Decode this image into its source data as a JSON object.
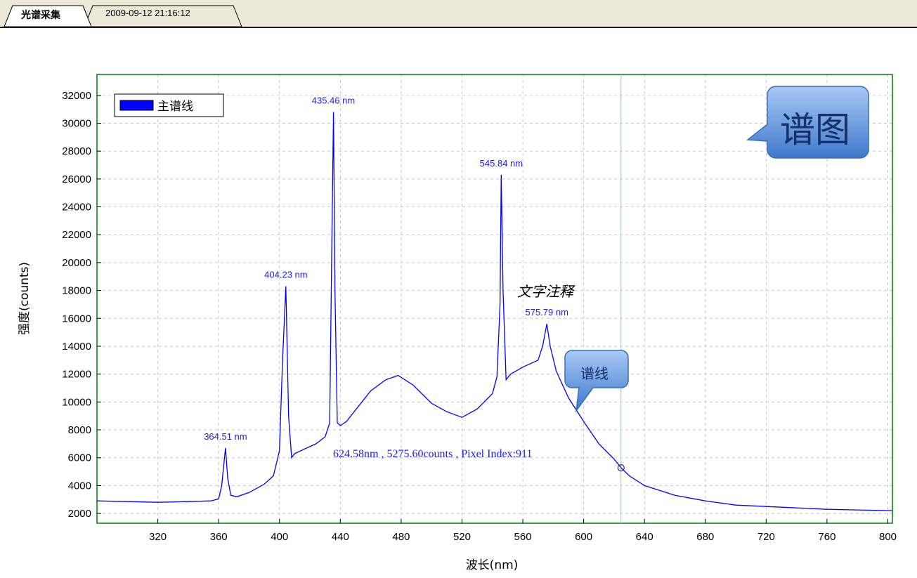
{
  "tabs": [
    {
      "label": "光谱采集",
      "active": true
    },
    {
      "label": "2009-09-12 21:16:12",
      "active": false
    }
  ],
  "colors": {
    "series": "#0000ff",
    "plot_border": "#008000",
    "crosshair": "#8ecbe0",
    "grid": "#c8c8c8",
    "callout": "#5b8fd6"
  },
  "chart_data": {
    "type": "line",
    "xlabel": "波长(nm)",
    "ylabel": "强度(counts)",
    "xlim": [
      280,
      803
    ],
    "ylim": [
      1300,
      33500
    ],
    "xticks": [
      320,
      360,
      400,
      440,
      480,
      520,
      560,
      600,
      640,
      680,
      720,
      760,
      800
    ],
    "yticks": [
      2000,
      4000,
      6000,
      8000,
      10000,
      12000,
      14000,
      16000,
      18000,
      20000,
      22000,
      24000,
      26000,
      28000,
      30000,
      32000
    ],
    "grid": true,
    "legend": {
      "position": "top-left",
      "entries": [
        "主谱线"
      ]
    },
    "series": [
      {
        "name": "主谱线",
        "x": [
          280,
          300,
          320,
          340,
          355,
          360,
          362,
          364.5,
          366,
          368,
          372,
          380,
          390,
          396,
          400,
          402,
          404.2,
          406,
          408,
          410,
          416,
          424,
          430,
          433,
          434.5,
          435.5,
          436.5,
          438,
          440,
          444,
          452,
          460,
          470,
          478,
          488,
          500,
          510,
          520,
          530,
          540,
          543,
          545,
          545.8,
          547,
          549,
          552,
          560,
          566,
          570,
          573,
          575.8,
          578,
          582,
          590,
          600,
          610,
          620,
          624.6,
          630,
          640,
          660,
          680,
          700,
          720,
          740,
          760,
          780,
          803
        ],
        "y": [
          2900,
          2850,
          2800,
          2850,
          2900,
          3050,
          4000,
          6700,
          4500,
          3300,
          3200,
          3500,
          4100,
          4700,
          6500,
          13000,
          18300,
          9000,
          6000,
          6300,
          6600,
          7000,
          7500,
          8500,
          22000,
          30800,
          18000,
          8500,
          8300,
          8600,
          9700,
          10800,
          11600,
          11900,
          11200,
          9900,
          9300,
          8900,
          9500,
          10600,
          11800,
          17000,
          26300,
          18000,
          11600,
          12000,
          12500,
          12800,
          13000,
          14000,
          15600,
          14000,
          12200,
          10300,
          8600,
          7000,
          5900,
          5276,
          4700,
          4000,
          3300,
          2900,
          2600,
          2500,
          2400,
          2300,
          2250,
          2200
        ]
      }
    ],
    "peak_labels": [
      {
        "x": 364.51,
        "text": "364.51 nm"
      },
      {
        "x": 404.23,
        "text": "404.23 nm"
      },
      {
        "x": 435.46,
        "text": "435.46 nm"
      },
      {
        "x": 545.84,
        "text": "545.84 nm"
      },
      {
        "x": 575.79,
        "text": "575.79 nm"
      }
    ],
    "annotations": {
      "text_note": "文字注释",
      "cursor_x": 624.58,
      "cursor_y": 5275.6,
      "cursor_readout": "624.58nm , 5275.60counts , Pixel Index:911",
      "callout_chart": "谱图",
      "callout_line": "谱线"
    }
  }
}
